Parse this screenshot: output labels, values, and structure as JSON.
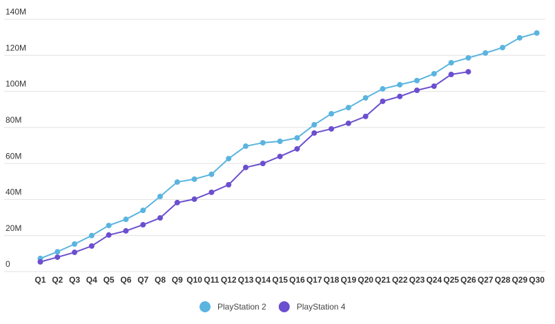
{
  "chart_data": {
    "type": "line",
    "categories": [
      "Q1",
      "Q2",
      "Q3",
      "Q4",
      "Q5",
      "Q6",
      "Q7",
      "Q8",
      "Q9",
      "Q10",
      "Q11",
      "Q12",
      "Q13",
      "Q14",
      "Q15",
      "Q16",
      "Q17",
      "Q18",
      "Q19",
      "Q20",
      "Q21",
      "Q22",
      "Q23",
      "Q24",
      "Q25",
      "Q26",
      "Q27",
      "Q28",
      "Q29",
      "Q30"
    ],
    "series": [
      {
        "name": "PlayStation 2",
        "color": "#5ab4e0",
        "values": [
          7300000,
          11000000,
          15300000,
          20000000,
          25600000,
          29000000,
          34000000,
          41700000,
          49700000,
          51300000,
          54000000,
          62700000,
          69600000,
          71500000,
          72300000,
          74200000,
          81500000,
          87600000,
          91000000,
          96400000,
          101400000,
          103700000,
          106000000,
          109800000,
          115900000,
          118600000,
          121300000,
          124300000,
          129700000,
          132400000
        ]
      },
      {
        "name": "PlayStation 4",
        "color": "#6b4fcf",
        "values": [
          5400000,
          8000000,
          10700000,
          14200000,
          20300000,
          22600000,
          26000000,
          29800000,
          38300000,
          40200000,
          44000000,
          48200000,
          57800000,
          60000000,
          63900000,
          68100000,
          76900000,
          79200000,
          82300000,
          86100000,
          94500000,
          97200000,
          100600000,
          102900000,
          109400000,
          110900000,
          null,
          null,
          null,
          null
        ]
      }
    ],
    "ylim": [
      0,
      140000000
    ],
    "yticks": [
      {
        "value": 0,
        "label": "0"
      },
      {
        "value": 20000000,
        "label": "20M"
      },
      {
        "value": 40000000,
        "label": "40M"
      },
      {
        "value": 60000000,
        "label": "60M"
      },
      {
        "value": 80000000,
        "label": "80M"
      },
      {
        "value": 100000000,
        "label": "100M"
      },
      {
        "value": 120000000,
        "label": "120M"
      },
      {
        "value": 140000000,
        "label": "140M"
      }
    ],
    "grid": true,
    "legend": "bottom"
  }
}
